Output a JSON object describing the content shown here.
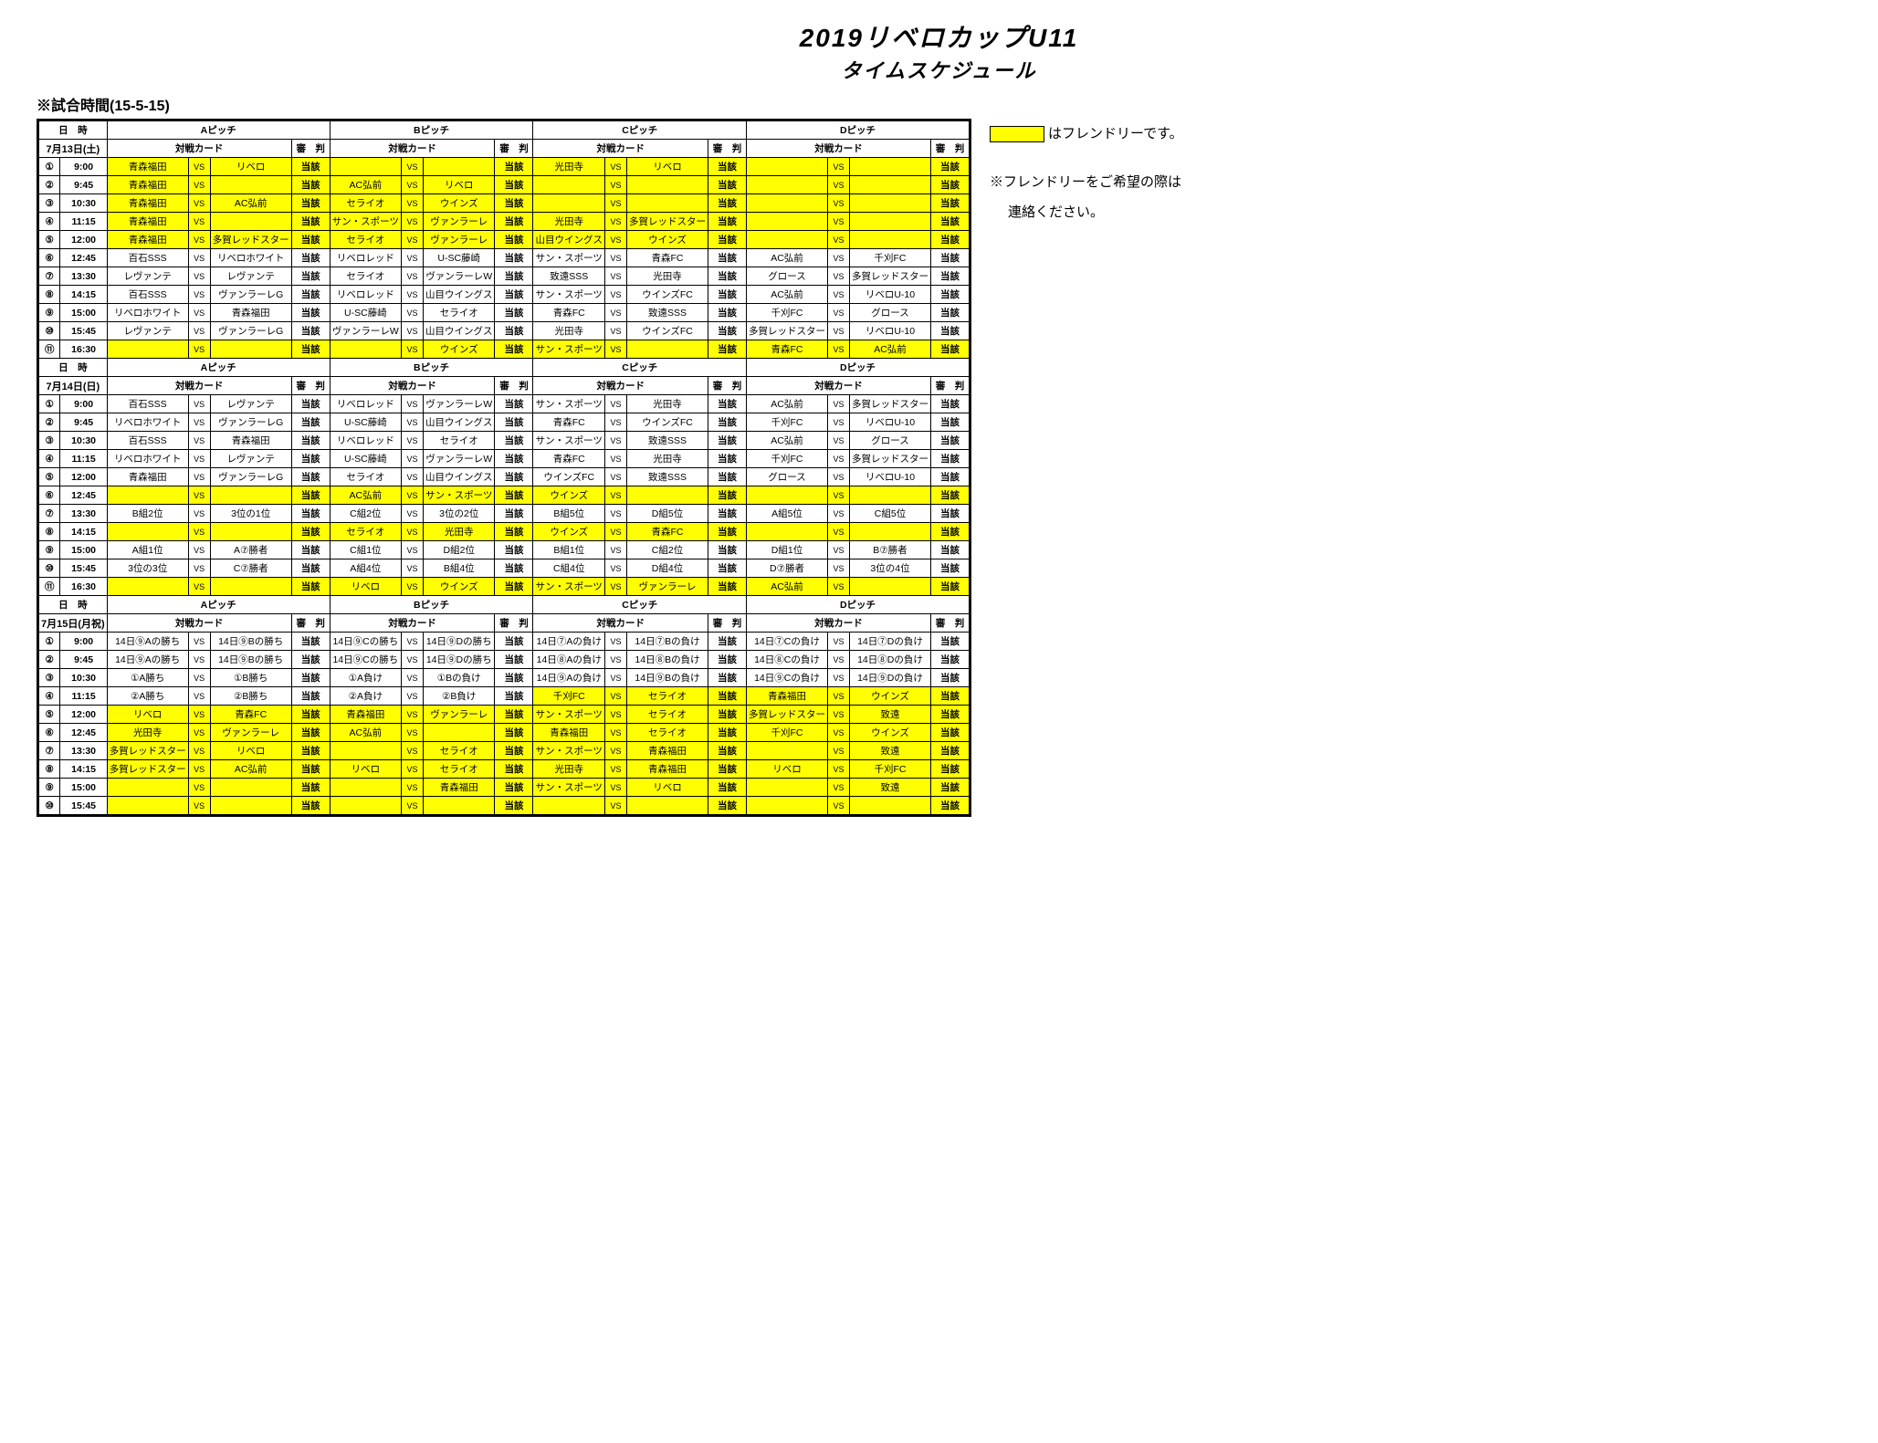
{
  "title1": "2019リベロカップU11",
  "title2": "タイムスケジュール",
  "matchTimeLabel": "※試合時間(15-5-15)",
  "legend": {
    "text": "はフレンドリーです。"
  },
  "note1": "※フレンドリーをご希望の際は",
  "note2": "連絡ください。",
  "datetimeHeader": "日　時",
  "pitches": [
    "Aピッチ",
    "Bピッチ",
    "Cピッチ",
    "Dピッチ"
  ],
  "cardLabel": "対戦カード",
  "refLabel": "審　判",
  "refVal": "当該",
  "refVal2": "当該",
  "vs": "VS",
  "circled": [
    "①",
    "②",
    "③",
    "④",
    "⑤",
    "⑥",
    "⑦",
    "⑧",
    "⑨",
    "⑩",
    "⑪"
  ],
  "days": [
    {
      "date": "7月13日(土)",
      "rows": [
        {
          "t": "9:00",
          "c": [
            [
              true,
              "青森福田",
              "リベロ"
            ],
            [
              true,
              "",
              ""
            ],
            [
              true,
              "光田寺",
              "リベロ"
            ],
            [
              true,
              "",
              ""
            ]
          ]
        },
        {
          "t": "9:45",
          "c": [
            [
              true,
              "青森福田",
              ""
            ],
            [
              true,
              "AC弘前",
              "リベロ"
            ],
            [
              true,
              "",
              ""
            ],
            [
              true,
              "",
              ""
            ]
          ]
        },
        {
          "t": "10:30",
          "c": [
            [
              true,
              "青森福田",
              "AC弘前"
            ],
            [
              true,
              "セライオ",
              "ウインズ"
            ],
            [
              true,
              "",
              ""
            ],
            [
              true,
              "",
              ""
            ]
          ]
        },
        {
          "t": "11:15",
          "c": [
            [
              true,
              "青森福田",
              ""
            ],
            [
              true,
              "サン・スポーツ",
              "ヴァンラーレ"
            ],
            [
              true,
              "光田寺",
              "多賀レッドスター"
            ],
            [
              true,
              "",
              ""
            ]
          ]
        },
        {
          "t": "12:00",
          "c": [
            [
              true,
              "青森福田",
              "多賀レッドスター"
            ],
            [
              true,
              "セライオ",
              "ヴァンラーレ"
            ],
            [
              true,
              "山目ウイングス",
              "ウインズ"
            ],
            [
              true,
              "",
              ""
            ]
          ]
        },
        {
          "t": "12:45",
          "c": [
            [
              false,
              "百石SSS",
              "リベロホワイト"
            ],
            [
              false,
              "リベロレッド",
              "U-SC藤崎"
            ],
            [
              false,
              "サン・スポーツ",
              "青森FC"
            ],
            [
              false,
              "AC弘前",
              "千刈FC"
            ]
          ]
        },
        {
          "t": "13:30",
          "c": [
            [
              false,
              "レヴァンテ",
              "レヴァンテ"
            ],
            [
              false,
              "セライオ",
              "ヴァンラーレW"
            ],
            [
              false,
              "致遠SSS",
              "光田寺"
            ],
            [
              false,
              "グロース",
              "多賀レッドスター"
            ]
          ]
        },
        {
          "t": "14:15",
          "c": [
            [
              false,
              "百石SSS",
              "ヴァンラーレG"
            ],
            [
              false,
              "リベロレッド",
              "山目ウイングス"
            ],
            [
              false,
              "サン・スポーツ",
              "ウインズFC"
            ],
            [
              false,
              "AC弘前",
              "リベロU-10"
            ]
          ]
        },
        {
          "t": "15:00",
          "c": [
            [
              false,
              "リベロホワイト",
              "青森福田"
            ],
            [
              false,
              "U-SC藤崎",
              "セライオ"
            ],
            [
              false,
              "青森FC",
              "致遠SSS"
            ],
            [
              false,
              "千刈FC",
              "グロース"
            ]
          ]
        },
        {
          "t": "15:45",
          "c": [
            [
              false,
              "レヴァンテ",
              "ヴァンラーレG"
            ],
            [
              false,
              "ヴァンラーレW",
              "山目ウイングス"
            ],
            [
              false,
              "光田寺",
              "ウインズFC"
            ],
            [
              false,
              "多賀レッドスター",
              "リベロU-10"
            ]
          ]
        },
        {
          "t": "16:30",
          "c": [
            [
              true,
              "",
              ""
            ],
            [
              true,
              "",
              "ウインズ"
            ],
            [
              true,
              "サン・スポーツ",
              ""
            ],
            [
              true,
              "青森FC",
              "AC弘前"
            ]
          ]
        }
      ]
    },
    {
      "date": "7月14日(日)",
      "rows": [
        {
          "t": "9:00",
          "c": [
            [
              false,
              "百石SSS",
              "レヴァンテ"
            ],
            [
              false,
              "リベロレッド",
              "ヴァンラーレW"
            ],
            [
              false,
              "サン・スポーツ",
              "光田寺"
            ],
            [
              false,
              "AC弘前",
              "多賀レッドスター"
            ]
          ]
        },
        {
          "t": "9:45",
          "c": [
            [
              false,
              "リベロホワイト",
              "ヴァンラーレG"
            ],
            [
              false,
              "U-SC藤崎",
              "山目ウイングス"
            ],
            [
              false,
              "青森FC",
              "ウインズFC"
            ],
            [
              false,
              "千刈FC",
              "リベロU-10"
            ]
          ]
        },
        {
          "t": "10:30",
          "c": [
            [
              false,
              "百石SSS",
              "青森福田"
            ],
            [
              false,
              "リベロレッド",
              "セライオ"
            ],
            [
              false,
              "サン・スポーツ",
              "致遠SSS"
            ],
            [
              false,
              "AC弘前",
              "グロース"
            ]
          ]
        },
        {
          "t": "11:15",
          "c": [
            [
              false,
              "リベロホワイト",
              "レヴァンテ"
            ],
            [
              false,
              "U-SC藤崎",
              "ヴァンラーレW"
            ],
            [
              false,
              "青森FC",
              "光田寺"
            ],
            [
              false,
              "千刈FC",
              "多賀レッドスター"
            ]
          ]
        },
        {
          "t": "12:00",
          "c": [
            [
              false,
              "青森福田",
              "ヴァンラーレG"
            ],
            [
              false,
              "セライオ",
              "山目ウイングス"
            ],
            [
              false,
              "ウインズFC",
              "致遠SSS"
            ],
            [
              false,
              "グロース",
              "リベロU-10"
            ]
          ]
        },
        {
          "t": "12:45",
          "c": [
            [
              true,
              "",
              ""
            ],
            [
              true,
              "AC弘前",
              "サン・スポーツ"
            ],
            [
              true,
              "ウインズ",
              ""
            ],
            [
              true,
              "",
              ""
            ]
          ]
        },
        {
          "t": "13:30",
          "c": [
            [
              false,
              "B組2位",
              "3位の1位"
            ],
            [
              false,
              "C組2位",
              "3位の2位"
            ],
            [
              false,
              "B組5位",
              "D組5位"
            ],
            [
              false,
              "A組5位",
              "C組5位"
            ]
          ]
        },
        {
          "t": "14:15",
          "c": [
            [
              true,
              "",
              ""
            ],
            [
              true,
              "セライオ",
              "光田寺"
            ],
            [
              true,
              "ウインズ",
              "青森FC"
            ],
            [
              true,
              "",
              ""
            ]
          ]
        },
        {
          "t": "15:00",
          "c": [
            [
              false,
              "A組1位",
              "A⑦勝者"
            ],
            [
              false,
              "C組1位",
              "D組2位"
            ],
            [
              false,
              "B組1位",
              "C組2位"
            ],
            [
              false,
              "D組1位",
              "B⑦勝者"
            ]
          ]
        },
        {
          "t": "15:45",
          "c": [
            [
              false,
              "3位の3位",
              "C⑦勝者"
            ],
            [
              false,
              "A組4位",
              "B組4位"
            ],
            [
              false,
              "C組4位",
              "D組4位"
            ],
            [
              false,
              "D⑦勝者",
              "3位の4位"
            ]
          ]
        },
        {
          "t": "16:30",
          "c": [
            [
              true,
              "",
              ""
            ],
            [
              true,
              "リベロ",
              "ウインズ"
            ],
            [
              true,
              "サン・スポーツ",
              "ヴァンラーレ"
            ],
            [
              true,
              "AC弘前",
              ""
            ]
          ]
        }
      ]
    },
    {
      "date": "7月15日(月祝)",
      "rows": [
        {
          "t": "9:00",
          "c": [
            [
              false,
              "14日⑨Aの勝ち",
              "14日⑨Bの勝ち"
            ],
            [
              false,
              "14日⑨Cの勝ち",
              "14日⑨Dの勝ち"
            ],
            [
              false,
              "14日⑦Aの負け",
              "14日⑦Bの負け"
            ],
            [
              false,
              "14日⑦Cの負け",
              "14日⑦Dの負け"
            ]
          ]
        },
        {
          "t": "9:45",
          "c": [
            [
              false,
              "14日⑨Aの勝ち",
              "14日⑨Bの勝ち"
            ],
            [
              false,
              "14日⑨Cの勝ち",
              "14日⑨Dの勝ち"
            ],
            [
              false,
              "14日⑧Aの負け",
              "14日⑧Bの負け"
            ],
            [
              false,
              "14日⑧Cの負け",
              "14日⑧Dの負け"
            ]
          ]
        },
        {
          "t": "10:30",
          "c": [
            [
              false,
              "①A勝ち",
              "①B勝ち"
            ],
            [
              false,
              "①A負け",
              "①Bの負け"
            ],
            [
              false,
              "14日⑨Aの負け",
              "14日⑨Bの負け"
            ],
            [
              false,
              "14日⑨Cの負け",
              "14日⑨Dの負け"
            ]
          ]
        },
        {
          "t": "11:15",
          "c": [
            [
              false,
              "②A勝ち",
              "②B勝ち"
            ],
            [
              false,
              "②A負け",
              "②B負け"
            ],
            [
              true,
              "千刈FC",
              "セライオ"
            ],
            [
              true,
              "青森福田",
              "ウインズ"
            ]
          ]
        },
        {
          "t": "12:00",
          "c": [
            [
              true,
              "リベロ",
              "青森FC"
            ],
            [
              true,
              "青森福田",
              "ヴァンラーレ"
            ],
            [
              true,
              "サン・スポーツ",
              "セライオ"
            ],
            [
              true,
              "多賀レッドスター",
              "致遠"
            ]
          ]
        },
        {
          "t": "12:45",
          "c": [
            [
              true,
              "光田寺",
              "ヴァンラーレ"
            ],
            [
              true,
              "AC弘前",
              ""
            ],
            [
              true,
              "青森福田",
              "セライオ"
            ],
            [
              true,
              "千刈FC",
              "ウインズ"
            ]
          ]
        },
        {
          "t": "13:30",
          "c": [
            [
              true,
              "多賀レッドスター",
              "リベロ"
            ],
            [
              true,
              "",
              "セライオ"
            ],
            [
              true,
              "サン・スポーツ",
              "青森福田"
            ],
            [
              true,
              "",
              "致遠"
            ]
          ]
        },
        {
          "t": "14:15",
          "c": [
            [
              true,
              "多賀レッドスター",
              "AC弘前"
            ],
            [
              true,
              "リベロ",
              "セライオ"
            ],
            [
              true,
              "光田寺",
              "青森福田"
            ],
            [
              true,
              "リベロ",
              "千刈FC"
            ]
          ]
        },
        {
          "t": "15:00",
          "c": [
            [
              true,
              "",
              ""
            ],
            [
              true,
              "",
              "青森福田"
            ],
            [
              true,
              "サン・スポーツ",
              "リベロ"
            ],
            [
              true,
              "",
              "致遠"
            ]
          ]
        },
        {
          "t": "15:45",
          "c": [
            [
              true,
              "",
              ""
            ],
            [
              true,
              "",
              ""
            ],
            [
              true,
              "",
              ""
            ],
            [
              true,
              "",
              ""
            ]
          ]
        }
      ]
    }
  ]
}
